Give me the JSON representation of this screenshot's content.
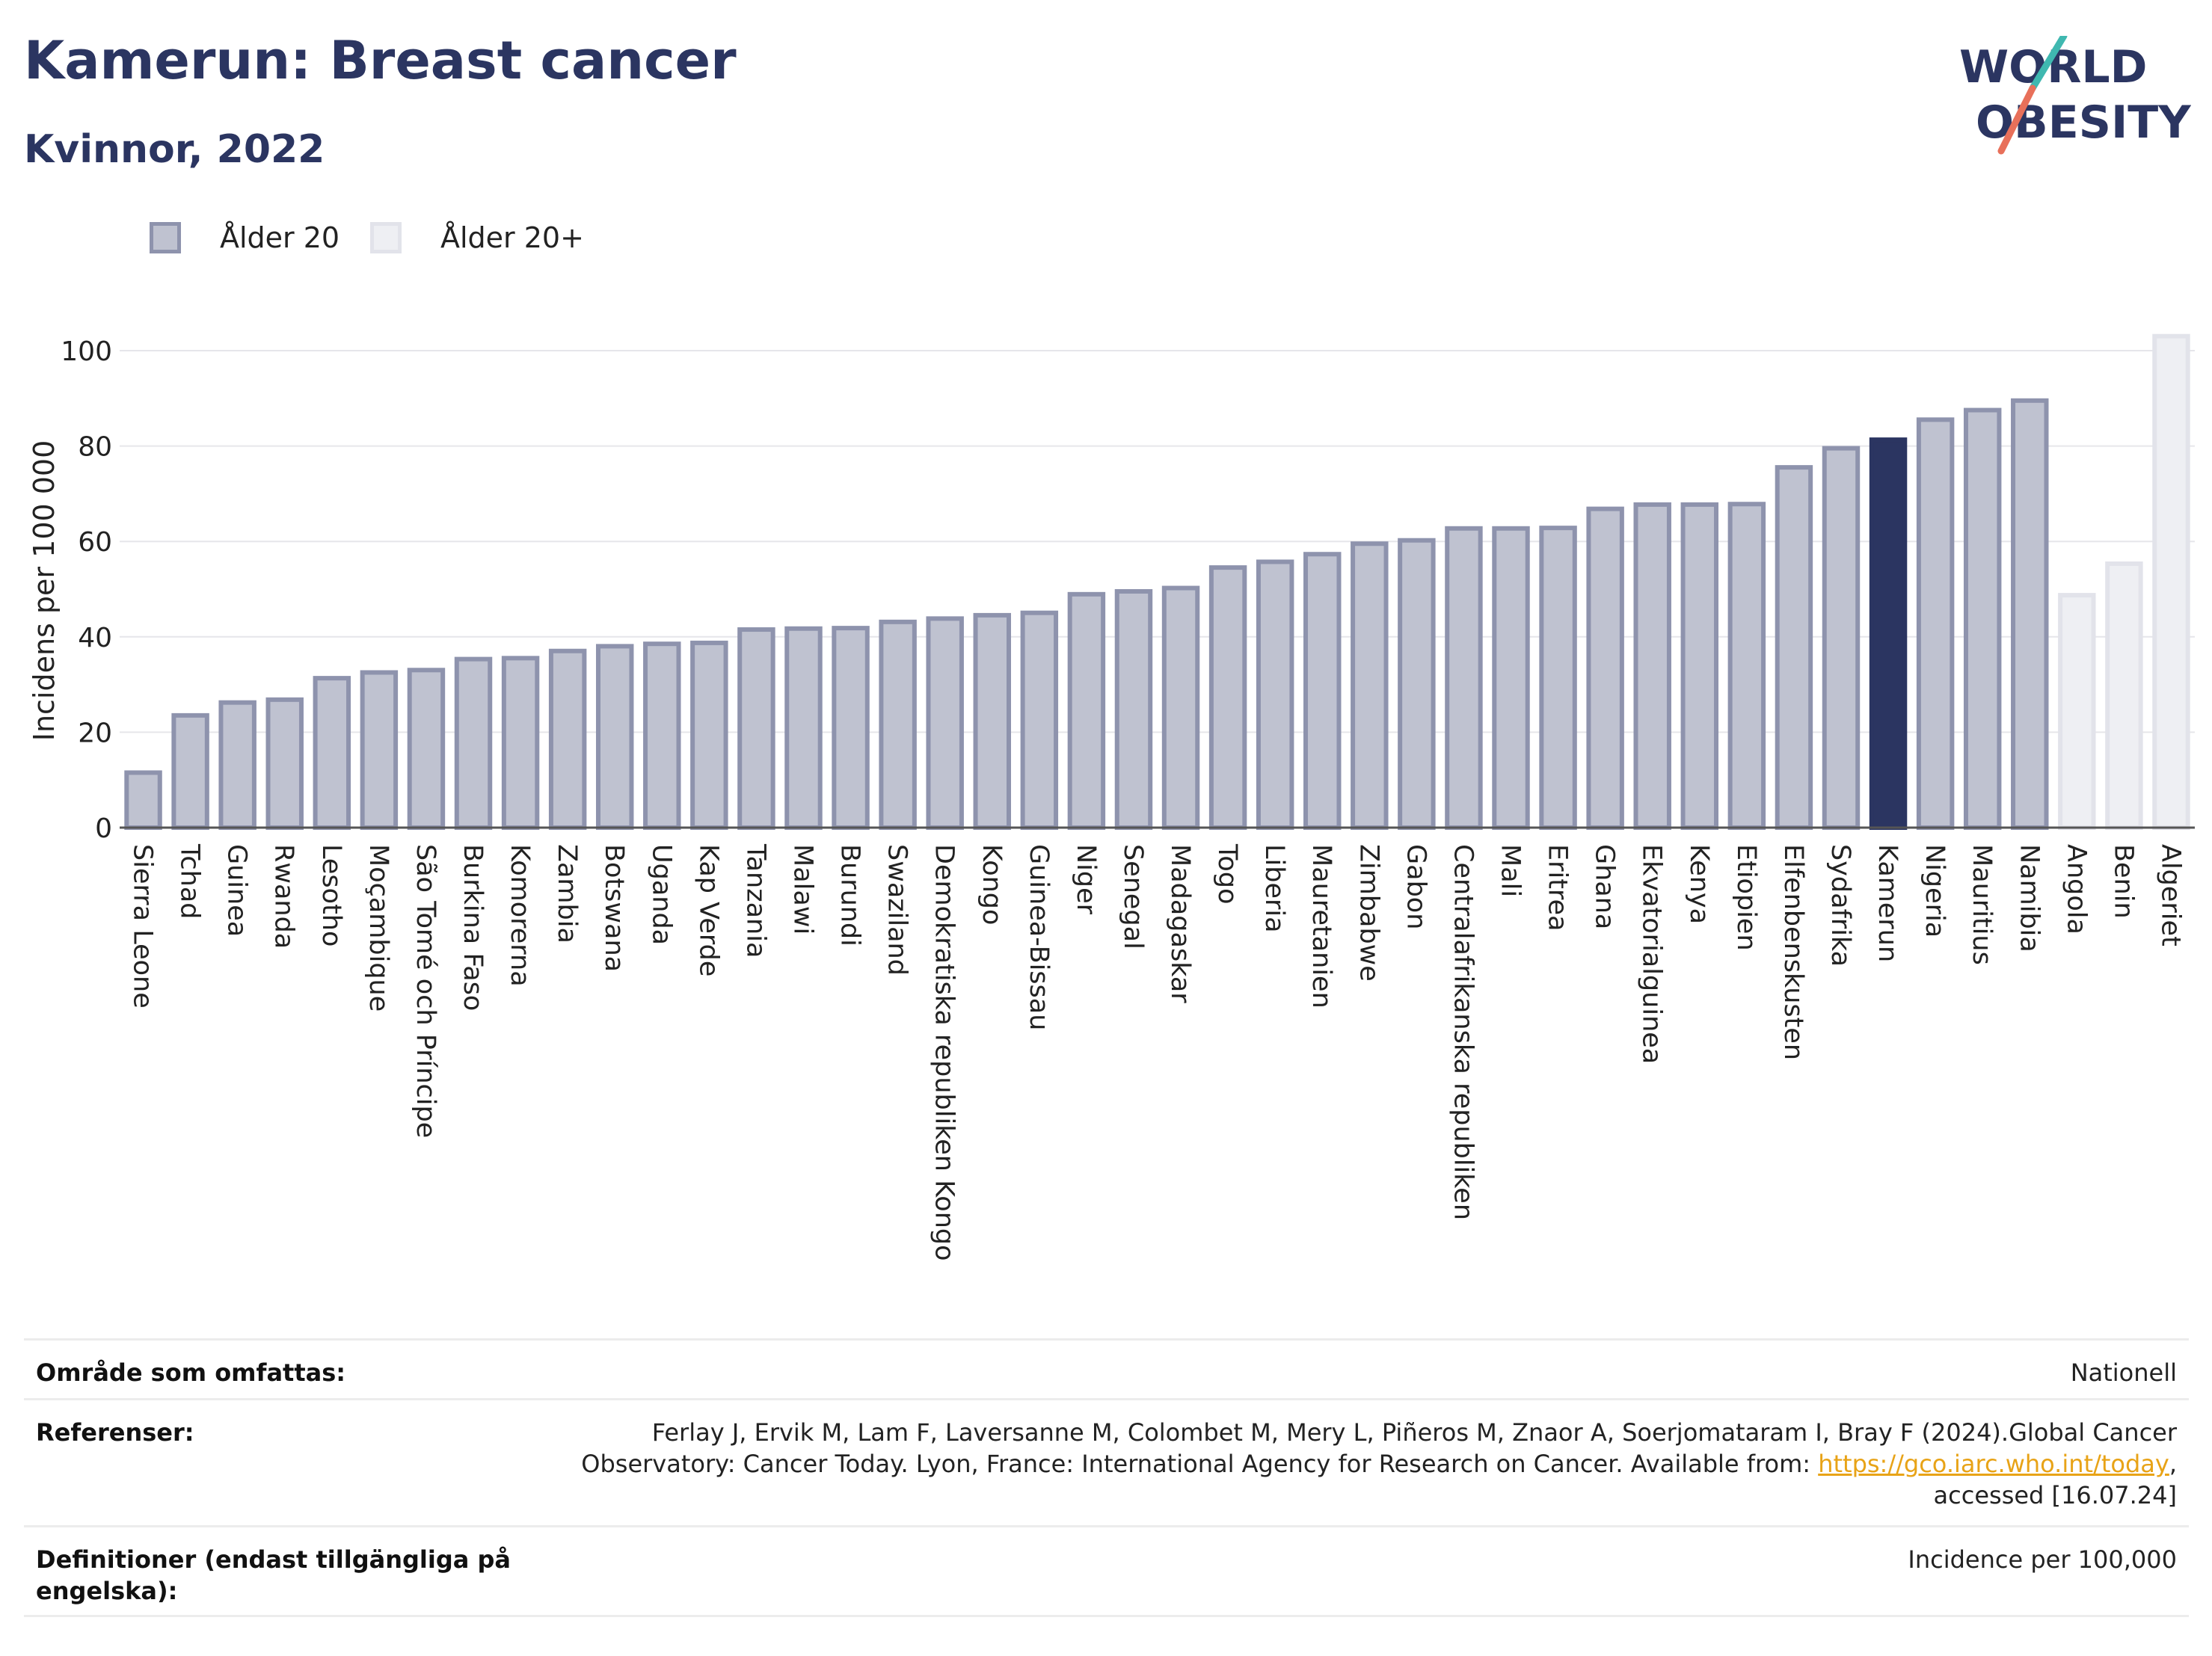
{
  "header": {
    "title": "Kamerun: Breast cancer",
    "subtitle": "Kvinnor, 2022"
  },
  "logo": {
    "line1": "WORLD",
    "line2": "OBESITY",
    "text_color": "#2b3561",
    "accent_teal": "#3fb8b0",
    "accent_coral": "#e8705a"
  },
  "legend": {
    "items": [
      {
        "label": "Ålder 20",
        "fill": "#bfc2d0",
        "stroke": "#8e93ad"
      },
      {
        "label": "Ålder 20+",
        "fill": "#eeeff3",
        "stroke": "#e2e3ea"
      }
    ]
  },
  "chart_data": {
    "type": "bar",
    "ylabel": "Incidens per 100 000",
    "ylim": [
      0,
      110
    ],
    "yticks": [
      0,
      20,
      40,
      60,
      80,
      100
    ],
    "grid": true,
    "legend_position": "top-left",
    "highlight": "Kamerun",
    "colors": {
      "age20_fill": "#bfc2d0",
      "age20_stroke": "#8e93ad",
      "age20plus_fill": "#eeeff3",
      "age20plus_stroke": "#e2e3ea",
      "highlight": "#2b3561"
    },
    "categories": [
      "Sierra Leone",
      "Tchad",
      "Guinea",
      "Rwanda",
      "Lesotho",
      "Moçambique",
      "São Tomé och Príncipe",
      "Burkina Faso",
      "Komorerna",
      "Zambia",
      "Botswana",
      "Uganda",
      "Kap Verde",
      "Tanzania",
      "Malawi",
      "Burundi",
      "Swaziland",
      "Demokratiska republiken Kongo",
      "Kongo",
      "Guinea-Bissau",
      "Niger",
      "Senegal",
      "Madagaskar",
      "Togo",
      "Liberia",
      "Mauretanien",
      "Zimbabwe",
      "Gabon",
      "Centralafrikanska republiken",
      "Mali",
      "Eritrea",
      "Ghana",
      "Ekvatorialguinea",
      "Kenya",
      "Etiopien",
      "Elfenbenskusten",
      "Sydafrika",
      "Kamerun",
      "Nigeria",
      "Mauritius",
      "Namibia",
      "Angola",
      "Benin",
      "Algeriet"
    ],
    "values": [
      12,
      24,
      26.7,
      27.3,
      31.8,
      33,
      33.5,
      35.8,
      36,
      37.5,
      38.5,
      39,
      39.2,
      42,
      42.2,
      42.3,
      43.6,
      44.3,
      45,
      45.5,
      49.4,
      50,
      50.7,
      55,
      56.2,
      57.8,
      60,
      60.7,
      63.2,
      63.2,
      63.3,
      67.3,
      68.2,
      68.2,
      68.3,
      76,
      80,
      81.8,
      86,
      88,
      90,
      49.2,
      55.8,
      103.5
    ],
    "series_group": [
      "Ålder 20",
      "Ålder 20",
      "Ålder 20",
      "Ålder 20",
      "Ålder 20",
      "Ålder 20",
      "Ålder 20",
      "Ålder 20",
      "Ålder 20",
      "Ålder 20",
      "Ålder 20",
      "Ålder 20",
      "Ålder 20",
      "Ålder 20",
      "Ålder 20",
      "Ålder 20",
      "Ålder 20",
      "Ålder 20",
      "Ålder 20",
      "Ålder 20",
      "Ålder 20",
      "Ålder 20",
      "Ålder 20",
      "Ålder 20",
      "Ålder 20",
      "Ålder 20",
      "Ålder 20",
      "Ålder 20",
      "Ålder 20",
      "Ålder 20",
      "Ålder 20",
      "Ålder 20",
      "Ålder 20",
      "Ålder 20",
      "Ålder 20",
      "Ålder 20",
      "Ålder 20",
      "Ålder 20",
      "Ålder 20",
      "Ålder 20",
      "Ålder 20",
      "Ålder 20+",
      "Ålder 20+",
      "Ålder 20+"
    ]
  },
  "info": {
    "coverage_label": "Område som omfattas:",
    "coverage_value": "Nationell",
    "references_label": "Referenser:",
    "references_line1": "Ferlay J, Ervik M, Lam F, Laversanne M, Colombet M, Mery L, Piñeros M, Znaor A, Soerjomataram I, Bray F (2024).Global Cancer",
    "references_line2_prefix": "Observatory: Cancer Today. Lyon, France: International Agency for Research on Cancer. Available from: ",
    "references_link": "https://gco.iarc.who.int/today",
    "references_line2_suffix": ",",
    "references_line3": "accessed [16.07.24]",
    "definitions_label_line1": "Definitioner (endast tillgängliga på",
    "definitions_label_line2": "engelska):",
    "definitions_value": "Incidence per 100,000"
  }
}
